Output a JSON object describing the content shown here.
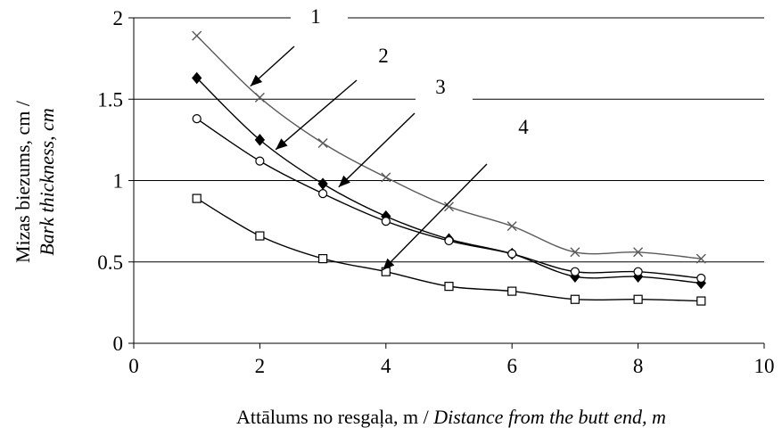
{
  "chart_data": {
    "type": "line",
    "xlabel_main": "Attālums no resgaļa, m / ",
    "xlabel_italic": "Distance from the butt end, m",
    "ylabel_main": "Mizas biezums, cm /",
    "ylabel_italic": "Bark thickness, cm",
    "xlim": [
      0,
      10
    ],
    "ylim": [
      0,
      2
    ],
    "xticks": [
      0,
      2,
      4,
      6,
      8,
      10
    ],
    "yticks": [
      0,
      0.5,
      1,
      1.5,
      2
    ],
    "xtick_labels": [
      "0",
      "2",
      "4",
      "6",
      "8",
      "10"
    ],
    "ytick_labels": [
      "0",
      "0.5",
      "1",
      "1.5",
      "2"
    ],
    "grid": "horizontal",
    "series": [
      {
        "label": "1",
        "marker": "x",
        "color": "#5a5a5a",
        "x": [
          1,
          2,
          3,
          4,
          5,
          6,
          7,
          8,
          9
        ],
        "y": [
          1.89,
          1.51,
          1.23,
          1.02,
          0.84,
          0.72,
          0.56,
          0.56,
          0.52
        ]
      },
      {
        "label": "2",
        "marker": "diamond",
        "color": "#000000",
        "x": [
          1,
          2,
          3,
          4,
          5,
          6,
          7,
          8,
          9
        ],
        "y": [
          1.63,
          1.25,
          0.98,
          0.78,
          0.64,
          0.55,
          0.41,
          0.41,
          0.37
        ]
      },
      {
        "label": "3",
        "marker": "circle",
        "color": "#000000",
        "x": [
          1,
          2,
          3,
          4,
          5,
          6,
          7,
          8,
          9
        ],
        "y": [
          1.38,
          1.12,
          0.92,
          0.75,
          0.63,
          0.55,
          0.44,
          0.44,
          0.4
        ]
      },
      {
        "label": "4",
        "marker": "square",
        "color": "#000000",
        "x": [
          1,
          2,
          3,
          4,
          5,
          6,
          7,
          8,
          9
        ],
        "y": [
          0.89,
          0.66,
          0.52,
          0.44,
          0.35,
          0.32,
          0.27,
          0.27,
          0.26
        ]
      }
    ],
    "callouts": [
      {
        "label": "1",
        "target": [
          1.85,
          1.58
        ]
      },
      {
        "label": "2",
        "target": [
          2.25,
          1.19
        ]
      },
      {
        "label": "3",
        "target": [
          3.25,
          0.96
        ]
      },
      {
        "label": "4",
        "target": [
          3.95,
          0.45
        ]
      }
    ]
  }
}
